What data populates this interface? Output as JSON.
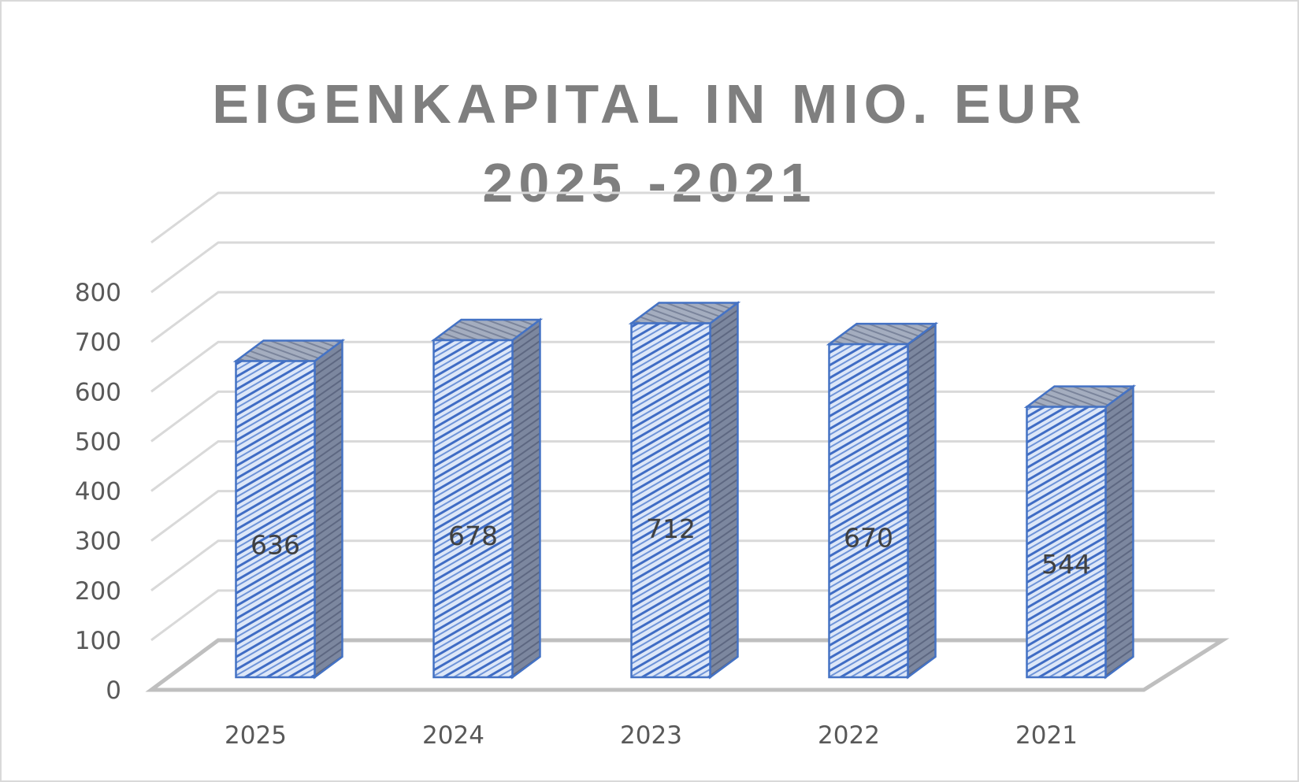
{
  "chart_data": {
    "type": "bar",
    "style": "3d-column",
    "title_lines": [
      "EIGENKAPITAL IN MIO. EUR",
      "2025 -2021"
    ],
    "categories": [
      "2025",
      "2024",
      "2023",
      "2022",
      "2021"
    ],
    "values": [
      636,
      678,
      712,
      670,
      544
    ],
    "data_labels": [
      "636",
      "678",
      "712",
      "670",
      "544"
    ],
    "yticks": [
      "0",
      "100",
      "200",
      "300",
      "400",
      "500",
      "600",
      "700",
      "800"
    ],
    "ylim": [
      0,
      800
    ],
    "grid": true,
    "legend": "none",
    "colors": {
      "bar_fill": "#dbe5f7",
      "bar_stripe": "#4a74c9",
      "bar_side": "#7f8aa3",
      "bar_top": "#9aa3b5",
      "bar_edge": "#4472c4",
      "grid": "#d9d9d9",
      "floor": "#bfbfbf",
      "title": "#7f7f7f",
      "labels": "#595959"
    }
  }
}
